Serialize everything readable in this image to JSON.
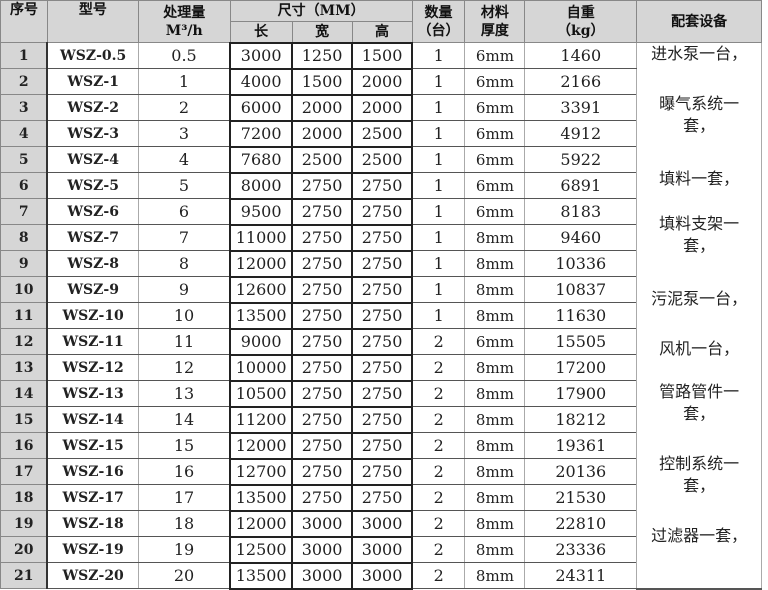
{
  "headers": {
    "index": "序号",
    "model": "型号",
    "capacity": "处理量",
    "capacity_unit": "M³/h",
    "size": "尺寸（MM）",
    "length": "长",
    "width": "宽",
    "height": "高",
    "quantity": "数量",
    "quantity_unit": "（台）",
    "material": "材料",
    "thickness": "厚度",
    "weight": "自重",
    "weight_unit": "（kg）",
    "equipment": "配套设备"
  },
  "rows": [
    {
      "i": "1",
      "m": "WSZ-0.5",
      "c": "0.5",
      "l": "3000",
      "w": "1250",
      "h": "1500",
      "q": "1",
      "t": "6mm",
      "kg": "1460"
    },
    {
      "i": "2",
      "m": "WSZ-1",
      "c": "1",
      "l": "4000",
      "w": "1500",
      "h": "2000",
      "q": "1",
      "t": "6mm",
      "kg": "2166"
    },
    {
      "i": "3",
      "m": "WSZ-2",
      "c": "2",
      "l": "6000",
      "w": "2000",
      "h": "2000",
      "q": "1",
      "t": "6mm",
      "kg": "3391"
    },
    {
      "i": "4",
      "m": "WSZ-3",
      "c": "3",
      "l": "7200",
      "w": "2000",
      "h": "2500",
      "q": "1",
      "t": "6mm",
      "kg": "4912"
    },
    {
      "i": "5",
      "m": "WSZ-4",
      "c": "4",
      "l": "7680",
      "w": "2500",
      "h": "2500",
      "q": "1",
      "t": "6mm",
      "kg": "5922"
    },
    {
      "i": "6",
      "m": "WSZ-5",
      "c": "5",
      "l": "8000",
      "w": "2750",
      "h": "2750",
      "q": "1",
      "t": "6mm",
      "kg": "6891"
    },
    {
      "i": "7",
      "m": "WSZ-6",
      "c": "6",
      "l": "9500",
      "w": "2750",
      "h": "2750",
      "q": "1",
      "t": "6mm",
      "kg": "8183"
    },
    {
      "i": "8",
      "m": "WSZ-7",
      "c": "7",
      "l": "11000",
      "w": "2750",
      "h": "2750",
      "q": "1",
      "t": "8mm",
      "kg": "9460"
    },
    {
      "i": "9",
      "m": "WSZ-8",
      "c": "8",
      "l": "12000",
      "w": "2750",
      "h": "2750",
      "q": "1",
      "t": "8mm",
      "kg": "10336"
    },
    {
      "i": "10",
      "m": "WSZ-9",
      "c": "9",
      "l": "12600",
      "w": "2750",
      "h": "2750",
      "q": "1",
      "t": "8mm",
      "kg": "10837"
    },
    {
      "i": "11",
      "m": "WSZ-10",
      "c": "10",
      "l": "13500",
      "w": "2750",
      "h": "2750",
      "q": "1",
      "t": "8mm",
      "kg": "11630"
    },
    {
      "i": "12",
      "m": "WSZ-11",
      "c": "11",
      "l": "9000",
      "w": "2750",
      "h": "2750",
      "q": "2",
      "t": "6mm",
      "kg": "15505"
    },
    {
      "i": "13",
      "m": "WSZ-12",
      "c": "12",
      "l": "10000",
      "w": "2750",
      "h": "2750",
      "q": "2",
      "t": "8mm",
      "kg": "17200"
    },
    {
      "i": "14",
      "m": "WSZ-13",
      "c": "13",
      "l": "10500",
      "w": "2750",
      "h": "2750",
      "q": "2",
      "t": "8mm",
      "kg": "17900"
    },
    {
      "i": "15",
      "m": "WSZ-14",
      "c": "14",
      "l": "11200",
      "w": "2750",
      "h": "2750",
      "q": "2",
      "t": "8mm",
      "kg": "18212"
    },
    {
      "i": "16",
      "m": "WSZ-15",
      "c": "15",
      "l": "12000",
      "w": "2750",
      "h": "2750",
      "q": "2",
      "t": "8mm",
      "kg": "19361"
    },
    {
      "i": "17",
      "m": "WSZ-16",
      "c": "16",
      "l": "12700",
      "w": "2750",
      "h": "2750",
      "q": "2",
      "t": "8mm",
      "kg": "20136"
    },
    {
      "i": "18",
      "m": "WSZ-17",
      "c": "17",
      "l": "13500",
      "w": "2750",
      "h": "2750",
      "q": "2",
      "t": "8mm",
      "kg": "21530"
    },
    {
      "i": "19",
      "m": "WSZ-18",
      "c": "18",
      "l": "12000",
      "w": "3000",
      "h": "3000",
      "q": "2",
      "t": "8mm",
      "kg": "22810"
    },
    {
      "i": "20",
      "m": "WSZ-19",
      "c": "19",
      "l": "12500",
      "w": "3000",
      "h": "3000",
      "q": "2",
      "t": "8mm",
      "kg": "23336"
    },
    {
      "i": "21",
      "m": "WSZ-20",
      "c": "20",
      "l": "13500",
      "w": "3000",
      "h": "3000",
      "q": "2",
      "t": "8mm",
      "kg": "24311"
    }
  ],
  "equipment": [
    "进水泵一台，",
    "曝气系统一套，",
    "填料一套，",
    "填料支架一套，",
    "污泥泵一台，",
    "风机一台，",
    "管路管件一套，",
    "控制系统一套，",
    "过滤器一套，"
  ],
  "colors": {
    "header_bg": "#d6d6d6"
  }
}
